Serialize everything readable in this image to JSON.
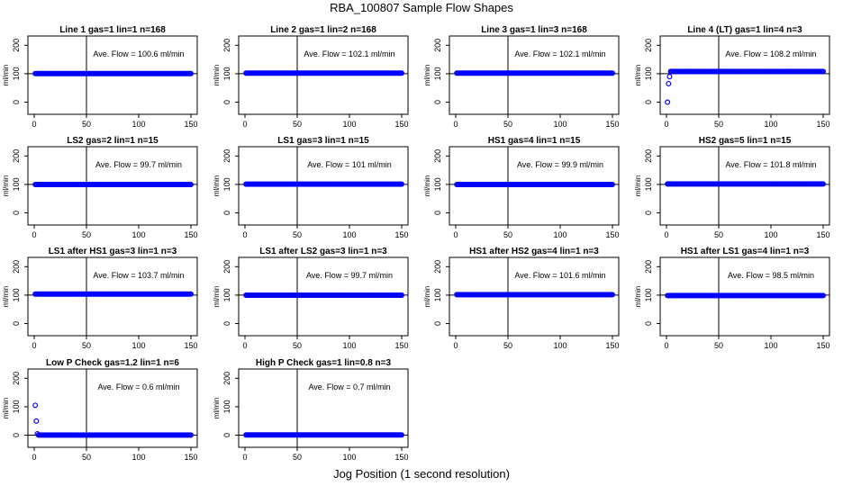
{
  "figure": {
    "title": "RBA_100807  Sample Flow Shapes",
    "xlabel": "Jog Position (1 second resolution)"
  },
  "style": {
    "marker_color": "#0000ff",
    "axis_color": "#000000"
  },
  "chart_data": [
    {
      "type": "scatter",
      "title": "Line 1 gas=1 lin=1 n=168",
      "ylabel": "ml/min",
      "xlim": [
        0,
        150
      ],
      "ylim": [
        -30,
        220
      ],
      "xticks": [
        0,
        50,
        100,
        150
      ],
      "yticks": [
        0,
        100,
        200
      ],
      "hlines": [
        100
      ],
      "vlines": [
        50
      ],
      "annotation": "Ave. Flow =  100.6  ml/min",
      "x_range": [
        1,
        150
      ],
      "steady_value": 100.6,
      "start_points": []
    },
    {
      "type": "scatter",
      "title": "Line 2 gas=1 lin=2 n=168",
      "ylabel": "ml/min",
      "xlim": [
        0,
        150
      ],
      "ylim": [
        -30,
        220
      ],
      "xticks": [
        0,
        50,
        100,
        150
      ],
      "yticks": [
        0,
        100,
        200
      ],
      "hlines": [
        100
      ],
      "vlines": [
        50
      ],
      "annotation": "Ave. Flow =  102.1  ml/min",
      "x_range": [
        1,
        150
      ],
      "steady_value": 102.1,
      "start_points": []
    },
    {
      "type": "scatter",
      "title": "Line 3 gas=1 lin=3 n=168",
      "ylabel": "ml/min",
      "xlim": [
        0,
        150
      ],
      "ylim": [
        -30,
        220
      ],
      "xticks": [
        0,
        50,
        100,
        150
      ],
      "yticks": [
        0,
        100,
        200
      ],
      "hlines": [
        100
      ],
      "vlines": [
        50
      ],
      "annotation": "Ave. Flow =  102.1  ml/min",
      "x_range": [
        1,
        150
      ],
      "steady_value": 102.1,
      "start_points": []
    },
    {
      "type": "scatter",
      "title": "Line 4 (LT) gas=1 lin=4 n=3",
      "ylabel": "ml/min",
      "xlim": [
        0,
        150
      ],
      "ylim": [
        -30,
        220
      ],
      "xticks": [
        0,
        50,
        100,
        150
      ],
      "yticks": [
        0,
        100,
        200
      ],
      "hlines": [
        100
      ],
      "vlines": [
        50
      ],
      "annotation": "Ave. Flow =  108.2  ml/min",
      "x_range": [
        4,
        150
      ],
      "steady_value": 108.2,
      "start_points": [
        [
          1,
          0
        ],
        [
          2,
          65
        ],
        [
          3,
          90
        ]
      ]
    },
    {
      "type": "scatter",
      "title": "LS2 gas=2 lin=1 n=15",
      "ylabel": "ml/min",
      "xlim": [
        0,
        150
      ],
      "ylim": [
        -30,
        220
      ],
      "xticks": [
        0,
        50,
        100,
        150
      ],
      "yticks": [
        0,
        100,
        200
      ],
      "hlines": [
        100
      ],
      "vlines": [
        50
      ],
      "annotation": "Ave. Flow =  99.7  ml/min",
      "x_range": [
        1,
        150
      ],
      "steady_value": 99.7,
      "start_points": []
    },
    {
      "type": "scatter",
      "title": "LS1 gas=3 lin=1 n=15",
      "ylabel": "ml/min",
      "xlim": [
        0,
        150
      ],
      "ylim": [
        -30,
        220
      ],
      "xticks": [
        0,
        50,
        100,
        150
      ],
      "yticks": [
        0,
        100,
        200
      ],
      "hlines": [
        100
      ],
      "vlines": [
        50
      ],
      "annotation": "Ave. Flow =  101  ml/min",
      "x_range": [
        1,
        150
      ],
      "steady_value": 101,
      "start_points": []
    },
    {
      "type": "scatter",
      "title": "HS1 gas=4 lin=1 n=15",
      "ylabel": "ml/min",
      "xlim": [
        0,
        150
      ],
      "ylim": [
        -30,
        220
      ],
      "xticks": [
        0,
        50,
        100,
        150
      ],
      "yticks": [
        0,
        100,
        200
      ],
      "hlines": [
        100
      ],
      "vlines": [
        50
      ],
      "annotation": "Ave. Flow =  99.9  ml/min",
      "x_range": [
        1,
        150
      ],
      "steady_value": 99.9,
      "start_points": []
    },
    {
      "type": "scatter",
      "title": "HS2 gas=5 lin=1 n=15",
      "ylabel": "ml/min",
      "xlim": [
        0,
        150
      ],
      "ylim": [
        -30,
        220
      ],
      "xticks": [
        0,
        50,
        100,
        150
      ],
      "yticks": [
        0,
        100,
        200
      ],
      "hlines": [
        100
      ],
      "vlines": [
        50
      ],
      "annotation": "Ave. Flow =  101.8  ml/min",
      "x_range": [
        1,
        150
      ],
      "steady_value": 101.8,
      "start_points": []
    },
    {
      "type": "scatter",
      "title": "LS1 after HS1 gas=3 lin=1 n=3",
      "ylabel": "ml/min",
      "xlim": [
        0,
        150
      ],
      "ylim": [
        -30,
        220
      ],
      "xticks": [
        0,
        50,
        100,
        150
      ],
      "yticks": [
        0,
        100,
        200
      ],
      "hlines": [
        100
      ],
      "vlines": [
        50
      ],
      "annotation": "Ave. Flow =  103.7  ml/min",
      "x_range": [
        1,
        150
      ],
      "steady_value": 103.7,
      "start_points": []
    },
    {
      "type": "scatter",
      "title": "LS1 after LS2 gas=3 lin=1 n=3",
      "ylabel": "ml/min",
      "xlim": [
        0,
        150
      ],
      "ylim": [
        -30,
        220
      ],
      "xticks": [
        0,
        50,
        100,
        150
      ],
      "yticks": [
        0,
        100,
        200
      ],
      "hlines": [
        100
      ],
      "vlines": [
        50
      ],
      "annotation": "Ave. Flow =  99.7  ml/min",
      "x_range": [
        1,
        150
      ],
      "steady_value": 99.7,
      "start_points": []
    },
    {
      "type": "scatter",
      "title": "HS1 after HS2 gas=4 lin=1 n=3",
      "ylabel": "ml/min",
      "xlim": [
        0,
        150
      ],
      "ylim": [
        -30,
        220
      ],
      "xticks": [
        0,
        50,
        100,
        150
      ],
      "yticks": [
        0,
        100,
        200
      ],
      "hlines": [
        100
      ],
      "vlines": [
        50
      ],
      "annotation": "Ave. Flow =  101.6  ml/min",
      "x_range": [
        1,
        150
      ],
      "steady_value": 101.6,
      "start_points": []
    },
    {
      "type": "scatter",
      "title": "HS1 after LS1 gas=4 lin=1 n=3",
      "ylabel": "ml/min",
      "xlim": [
        0,
        150
      ],
      "ylim": [
        -30,
        220
      ],
      "xticks": [
        0,
        50,
        100,
        150
      ],
      "yticks": [
        0,
        100,
        200
      ],
      "hlines": [
        100
      ],
      "vlines": [
        50
      ],
      "annotation": "Ave. Flow =  98.5  ml/min",
      "x_range": [
        1,
        150
      ],
      "steady_value": 98.5,
      "start_points": []
    },
    {
      "type": "scatter",
      "title": "Low P Check gas=1.2 lin=1 n=6",
      "ylabel": "ml/min",
      "xlim": [
        0,
        150
      ],
      "ylim": [
        -30,
        220
      ],
      "xticks": [
        0,
        50,
        100,
        150
      ],
      "yticks": [
        0,
        100,
        200
      ],
      "hlines": [
        0
      ],
      "vlines": [
        50
      ],
      "annotation": "Ave. Flow =  0.6  ml/min",
      "x_range": [
        4,
        150
      ],
      "steady_value": 0.6,
      "start_points": [
        [
          1,
          105
        ],
        [
          2,
          50
        ],
        [
          3,
          5
        ]
      ]
    },
    {
      "type": "scatter",
      "title": "High P Check gas=1 lin=0.8 n=3",
      "ylabel": "ml/min",
      "xlim": [
        0,
        150
      ],
      "ylim": [
        -30,
        220
      ],
      "xticks": [
        0,
        50,
        100,
        150
      ],
      "yticks": [
        0,
        100,
        200
      ],
      "hlines": [
        0
      ],
      "vlines": [
        50
      ],
      "annotation": "Ave. Flow =  0.7  ml/min",
      "x_range": [
        1,
        150
      ],
      "steady_value": 0.7,
      "start_points": []
    }
  ]
}
